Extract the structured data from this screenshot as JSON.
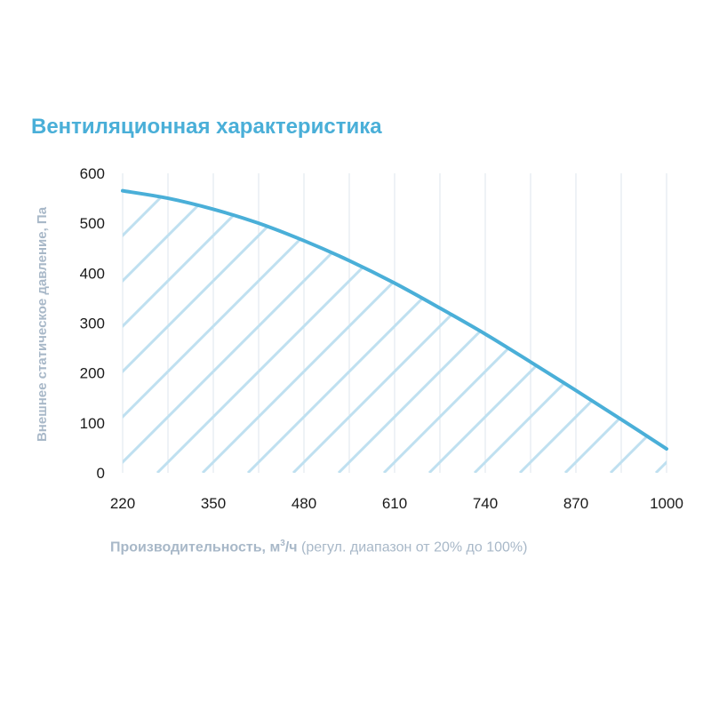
{
  "chart_data": {
    "type": "area",
    "title": "Вентиляционная характеристика",
    "ylabel": "Внешнее статическое давление, Па",
    "xlabel": {
      "main": "Производительность, м",
      "sup": "3",
      "unit": "/ч",
      "note": " (регул. диапазон от 20% до 100%)"
    },
    "xlim": [
      220,
      1000
    ],
    "ylim": [
      0,
      600
    ],
    "x_ticks": [
      220,
      350,
      480,
      610,
      740,
      870,
      1000
    ],
    "y_ticks": [
      0,
      100,
      200,
      300,
      400,
      500,
      600
    ],
    "grid": "vertical",
    "hatch": true,
    "series": [
      {
        "x": [
          220,
          285,
          350,
          415,
          480,
          545,
          610,
          675,
          740,
          805,
          870,
          935,
          1000
        ],
        "values": [
          565,
          550,
          528,
          500,
          465,
          425,
          380,
          330,
          278,
          222,
          165,
          107,
          48
        ]
      }
    ],
    "colors": {
      "line": "#4aafd8",
      "hatch": "#bfe0f0",
      "grid": "#dde6ee"
    }
  }
}
